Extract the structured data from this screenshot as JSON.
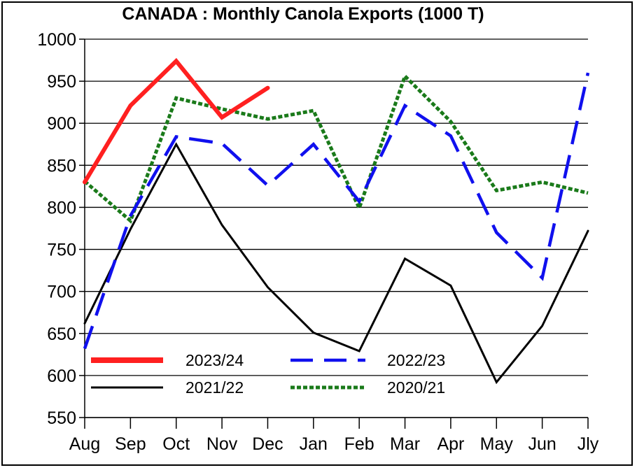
{
  "chart_data": {
    "type": "line",
    "title": "CANADA : Monthly Canola Exports (1000 T)",
    "xlabel": "",
    "ylabel": "",
    "categories": [
      "Aug",
      "Sep",
      "Oct",
      "Nov",
      "Dec",
      "Jan",
      "Feb",
      "Mar",
      "Apr",
      "May",
      "Jun",
      "Jly"
    ],
    "ylim": [
      550,
      1000
    ],
    "yticks": [
      550,
      600,
      650,
      700,
      750,
      800,
      850,
      900,
      950,
      1000
    ],
    "grid": "horizontal",
    "legend_position": "bottom-left",
    "series": [
      {
        "name": "2023/24",
        "color": "#ff2020",
        "style": "solid-thick",
        "values": [
          830,
          921,
          974,
          907,
          942,
          null,
          null,
          null,
          null,
          null,
          null,
          null
        ]
      },
      {
        "name": "2022/23",
        "color": "#1010ee",
        "style": "dashed",
        "values": [
          632,
          790,
          884,
          876,
          826,
          875,
          807,
          921,
          885,
          770,
          716,
          960
        ]
      },
      {
        "name": "2021/22",
        "color": "#000000",
        "style": "solid",
        "values": [
          662,
          774,
          875,
          779,
          705,
          651,
          629,
          739,
          707,
          592,
          659,
          772
        ]
      },
      {
        "name": "2020/21",
        "color": "#1a7a1a",
        "style": "dotted",
        "values": [
          831,
          784,
          930,
          917,
          905,
          915,
          799,
          956,
          902,
          820,
          830,
          817
        ]
      }
    ]
  }
}
